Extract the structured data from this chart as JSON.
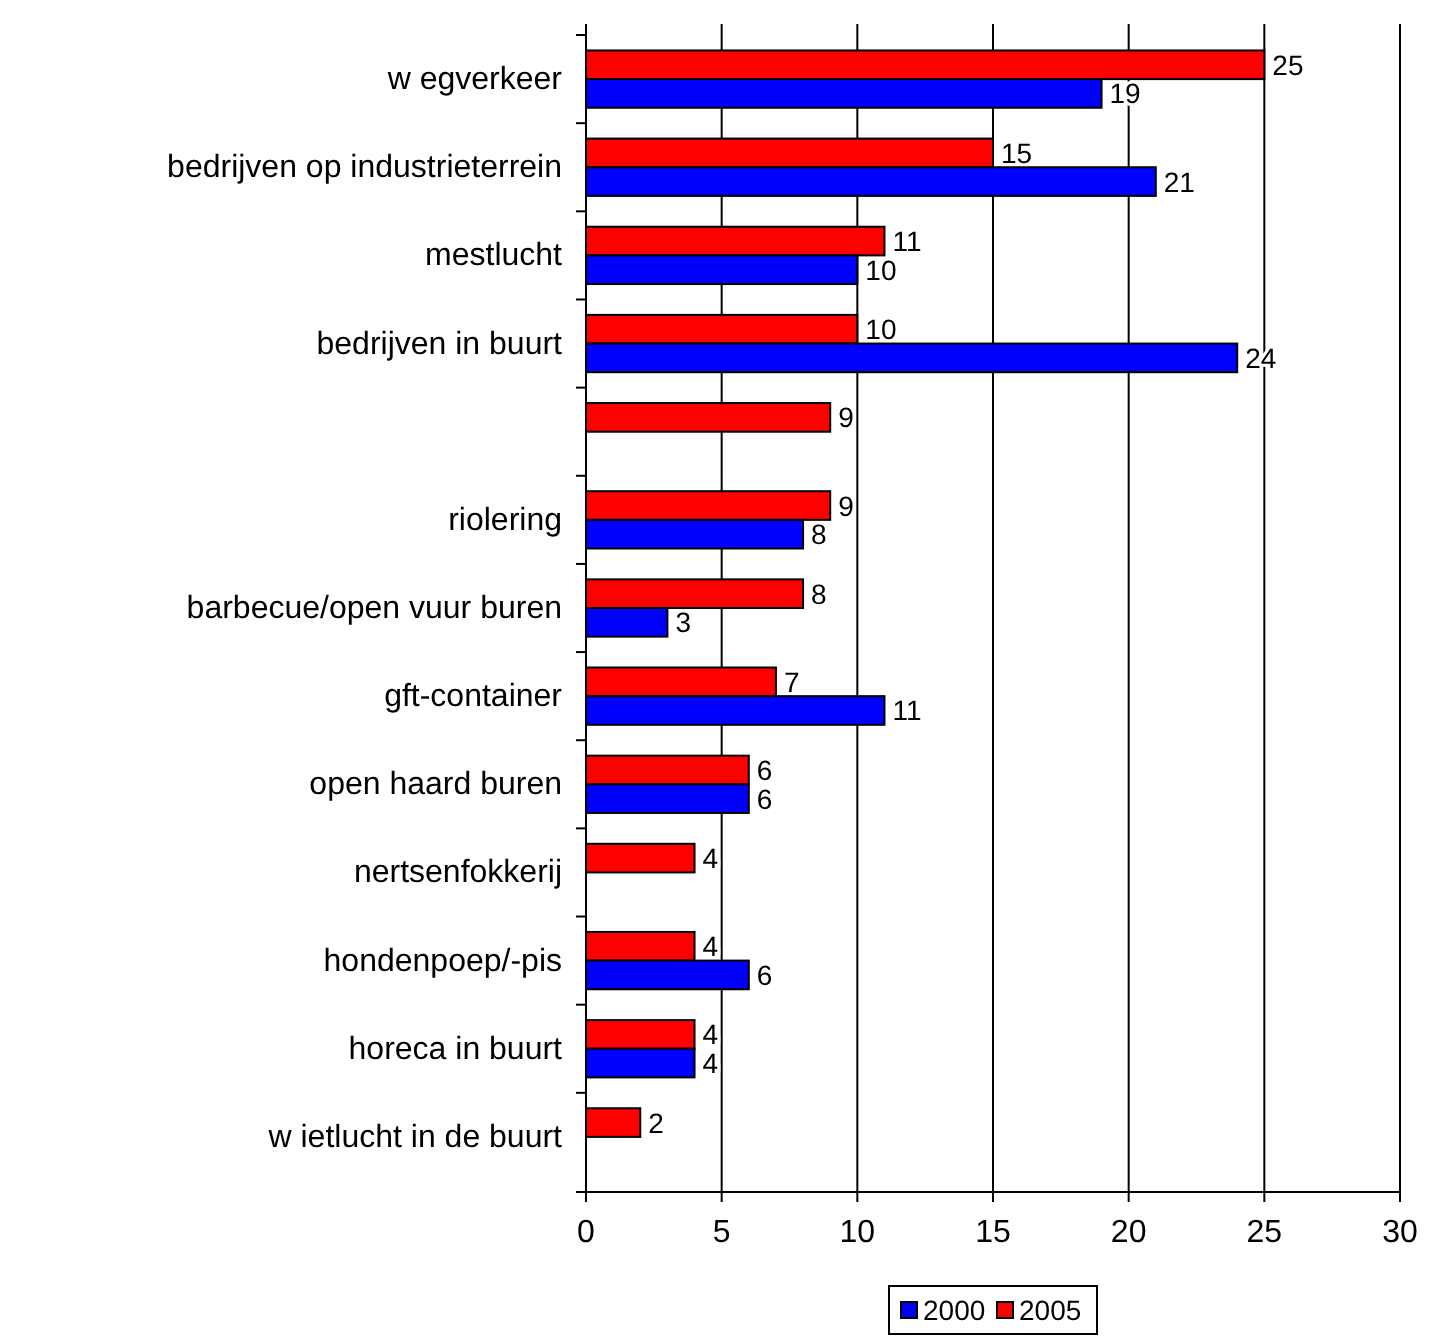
{
  "chart_data": {
    "type": "bar",
    "orientation": "horizontal",
    "categories": [
      "w egverkeer",
      "bedrijven op industrieterrein",
      "mestlucht",
      "bedrijven in buurt",
      null,
      "riolering",
      "barbecue/open vuur buren",
      "gft-container",
      "open haard buren",
      "nertsenfokkerij",
      "hondenpoep/-pis",
      "horeca in buurt",
      "w ietlucht in de buurt"
    ],
    "series": [
      {
        "name": "2000",
        "color": "#0000ff",
        "values": [
          19,
          21,
          10,
          24,
          null,
          8,
          3,
          11,
          6,
          null,
          6,
          4,
          null
        ]
      },
      {
        "name": "2005",
        "color": "#ff0000",
        "values": [
          25,
          15,
          11,
          10,
          9,
          9,
          8,
          7,
          6,
          4,
          4,
          4,
          2
        ]
      }
    ],
    "xlim": [
      0,
      30
    ],
    "xticks": [
      0,
      5,
      10,
      15,
      20,
      25,
      30
    ],
    "grid": "x",
    "legend": "bottom",
    "data_labels": true
  }
}
